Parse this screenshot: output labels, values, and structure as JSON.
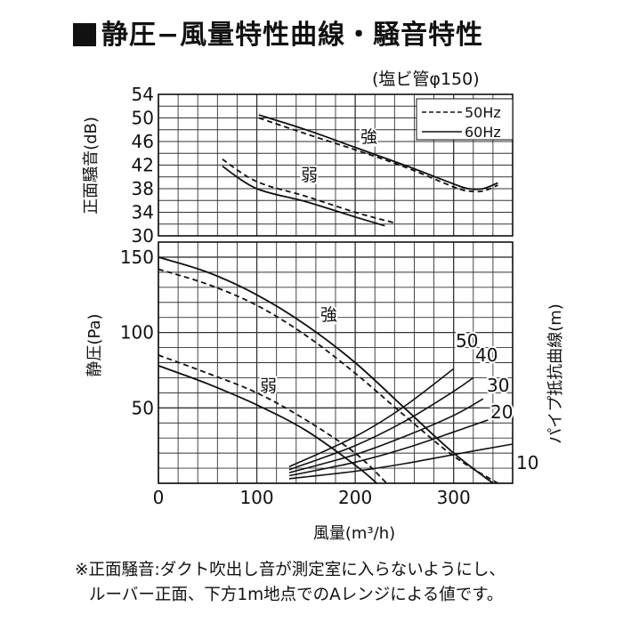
{
  "title": "静圧−風量特性曲線・騒音特性",
  "pipe_note": "(塩ビ管φ150)",
  "footnote": [
    "※正面騒音:ダクト吹出し音が測定室に入らないようにし、",
    "ルーバー正面、下方1m地点でのAレンジによる値です。"
  ],
  "chart_data": [
    {
      "type": "line",
      "name": "noise",
      "ylabel": "正面騒音(dB)",
      "ylim": [
        30,
        54
      ],
      "yticks": [
        "54",
        "50",
        "46",
        "42",
        "38",
        "34",
        "30"
      ],
      "xlim": [
        0,
        360
      ],
      "grid": true,
      "legend": {
        "placement": "top-right",
        "entries": [
          "50Hz",
          "60Hz"
        ]
      },
      "annotations": [
        "強",
        "弱"
      ],
      "series": [
        {
          "name": "60Hz",
          "curve": "強",
          "x": [
            102,
            150,
            200,
            250,
            300,
            315,
            330,
            345
          ],
          "y": [
            50.5,
            48.0,
            45.0,
            42.0,
            38.8,
            38.0,
            38.0,
            39.0
          ]
        },
        {
          "name": "50Hz",
          "curve": "強",
          "x": [
            102,
            150,
            200,
            250,
            300,
            315,
            330,
            345
          ],
          "y": [
            50.0,
            47.3,
            44.6,
            41.7,
            38.3,
            37.6,
            37.6,
            38.6
          ]
        },
        {
          "name": "60Hz",
          "curve": "弱",
          "x": [
            65,
            100,
            150,
            200,
            230
          ],
          "y": [
            41.8,
            38.0,
            35.8,
            33.2,
            31.7
          ]
        },
        {
          "name": "50Hz",
          "curve": "弱",
          "x": [
            65,
            100,
            150,
            200,
            240
          ],
          "y": [
            43.0,
            39.2,
            36.7,
            34.0,
            32.2
          ]
        }
      ]
    },
    {
      "type": "line",
      "name": "static-pressure",
      "ylabel": "静圧(Pa)",
      "xlabel": "風量(m³/h)",
      "xlim": [
        0,
        360
      ],
      "ylim": [
        0,
        160
      ],
      "xticks": [
        "0",
        "100",
        "200",
        "300"
      ],
      "yticks": [
        "150",
        "100",
        "50"
      ],
      "grid": true,
      "annotations": [
        "強",
        "弱"
      ],
      "series": [
        {
          "name": "60Hz",
          "curve": "強",
          "x": [
            0,
            50,
            100,
            150,
            200,
            250,
            300,
            340
          ],
          "y": [
            150,
            140,
            125,
            105,
            80,
            50,
            20,
            0
          ]
        },
        {
          "name": "50Hz",
          "curve": "強",
          "x": [
            0,
            50,
            100,
            150,
            200,
            250,
            300,
            345
          ],
          "y": [
            142,
            132,
            118,
            98,
            73,
            45,
            18,
            0
          ]
        },
        {
          "name": "60Hz",
          "curve": "弱",
          "x": [
            0,
            50,
            100,
            150,
            200,
            222
          ],
          "y": [
            78,
            66,
            52,
            35,
            12,
            0
          ]
        },
        {
          "name": "50Hz",
          "curve": "弱",
          "x": [
            0,
            50,
            100,
            150,
            200,
            232
          ],
          "y": [
            85,
            73,
            60,
            42,
            20,
            0
          ]
        }
      ],
      "pipe_resistance": {
        "label": "パイプ抵抗曲線(m)",
        "curves": [
          {
            "length": "50",
            "x": [
              133,
              200,
              250,
              300
            ],
            "y": [
              11,
              31,
              51,
              76
            ]
          },
          {
            "length": "40",
            "x": [
              133,
              200,
              250,
              300,
              320
            ],
            "y": [
              9,
              25,
              41,
              61,
              70
            ]
          },
          {
            "length": "30",
            "x": [
              133,
              200,
              250,
              300,
              330
            ],
            "y": [
              7,
              19,
              31,
              45,
              56
            ]
          },
          {
            "length": "20",
            "x": [
              133,
              200,
              250,
              300,
              335
            ],
            "y": [
              5,
              14,
              23,
              34,
              42
            ]
          },
          {
            "length": "10",
            "x": [
              133,
              200,
              250,
              300,
              360
            ],
            "y": [
              3,
              8,
              13,
              19,
              26
            ]
          }
        ]
      }
    }
  ]
}
